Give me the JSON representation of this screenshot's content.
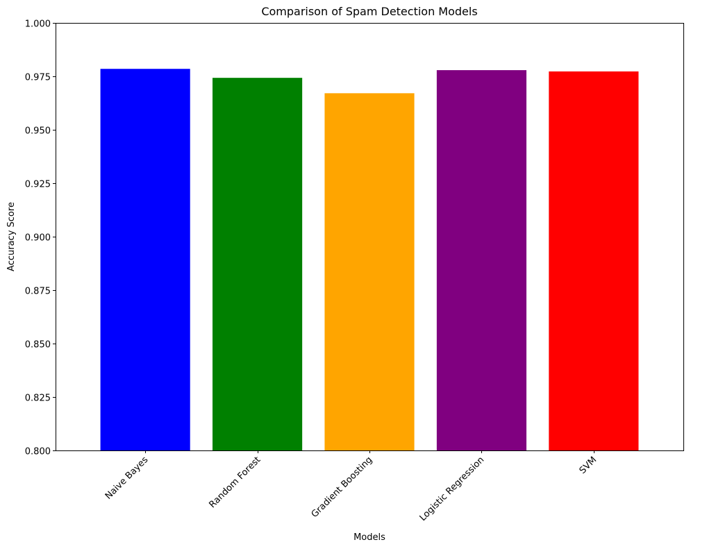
{
  "chart_data": {
    "type": "bar",
    "title": "Comparison of Spam Detection Models",
    "xlabel": "Models",
    "ylabel": "Accuracy Score",
    "categories": [
      "Naive Bayes",
      "Random Forest",
      "Gradient Boosting",
      "Logistic Regression",
      "SVM"
    ],
    "values": [
      0.9785,
      0.9743,
      0.9671,
      0.9779,
      0.9773
    ],
    "colors": [
      "#0000ff",
      "#008000",
      "#ffa500",
      "#800080",
      "#ff0000"
    ],
    "ylim": [
      0.8,
      1.0
    ],
    "yticks": [
      "0.800",
      "0.825",
      "0.850",
      "0.875",
      "0.900",
      "0.925",
      "0.950",
      "0.975",
      "1.000"
    ],
    "xtick_rotation_deg": 45,
    "grid": false,
    "legend": "none"
  }
}
